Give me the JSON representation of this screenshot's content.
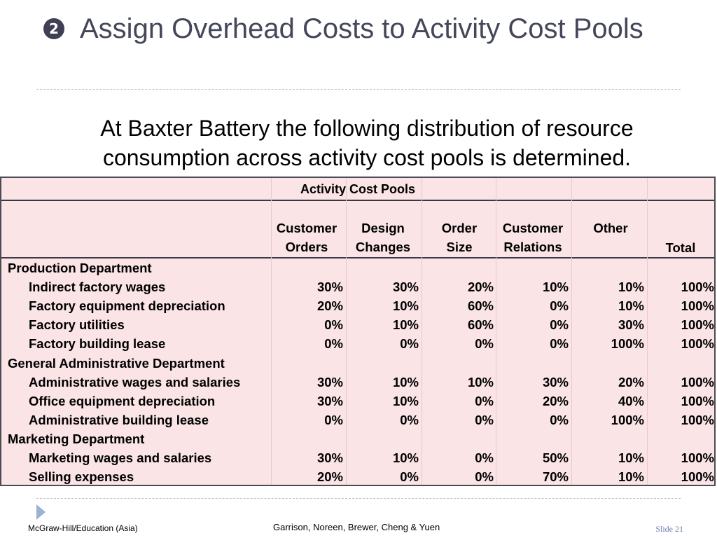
{
  "slide": {
    "bullet": "2",
    "title": "Assign Overhead Costs to Activity Cost Pools",
    "intro": "At Baxter Battery the following distribution of resource consumption across activity cost pools is determined."
  },
  "table": {
    "group_header": "Activity Cost Pools",
    "columns": [
      {
        "line1": "Customer",
        "line2": "Orders"
      },
      {
        "line1": "Design",
        "line2": "Changes"
      },
      {
        "line1": "Order",
        "line2": "Size"
      },
      {
        "line1": "Customer",
        "line2": "Relations"
      },
      {
        "line1": "",
        "line2": "Other"
      },
      {
        "line1": "",
        "line2": "Total"
      }
    ],
    "rows": [
      {
        "label": "Production Department",
        "section": true,
        "values": []
      },
      {
        "label": "Indirect factory wages",
        "section": false,
        "values": [
          "30%",
          "30%",
          "20%",
          "10%",
          "10%",
          "100%"
        ]
      },
      {
        "label": "Factory equipment depreciation",
        "section": false,
        "values": [
          "20%",
          "10%",
          "60%",
          "0%",
          "10%",
          "100%"
        ]
      },
      {
        "label": "Factory utilities",
        "section": false,
        "values": [
          "0%",
          "10%",
          "60%",
          "0%",
          "30%",
          "100%"
        ]
      },
      {
        "label": "Factory building lease",
        "section": false,
        "values": [
          "0%",
          "0%",
          "0%",
          "0%",
          "100%",
          "100%"
        ]
      },
      {
        "label": "General Administrative Department",
        "section": true,
        "values": []
      },
      {
        "label": "Administrative wages and salaries",
        "section": false,
        "values": [
          "30%",
          "10%",
          "10%",
          "30%",
          "20%",
          "100%"
        ]
      },
      {
        "label": "Office equipment depreciation",
        "section": false,
        "values": [
          "30%",
          "10%",
          "0%",
          "20%",
          "40%",
          "100%"
        ]
      },
      {
        "label": "Administrative building lease",
        "section": false,
        "values": [
          "0%",
          "0%",
          "0%",
          "0%",
          "100%",
          "100%"
        ]
      },
      {
        "label": "Marketing Department",
        "section": true,
        "values": []
      },
      {
        "label": "Marketing wages and salaries",
        "section": false,
        "values": [
          "30%",
          "10%",
          "0%",
          "50%",
          "10%",
          "100%"
        ]
      },
      {
        "label": "Selling expenses",
        "section": false,
        "values": [
          "20%",
          "0%",
          "0%",
          "70%",
          "10%",
          "100%"
        ]
      }
    ]
  },
  "footer": {
    "left": "McGraw-Hill/Education (Asia)",
    "middle": "Garrison, Noreen, Brewer, Cheng & Yuen",
    "right": "Slide 21"
  },
  "colors": {
    "table_bg": "#fbe4e6",
    "title": "#44475a",
    "arrow": "#98b4d3"
  }
}
